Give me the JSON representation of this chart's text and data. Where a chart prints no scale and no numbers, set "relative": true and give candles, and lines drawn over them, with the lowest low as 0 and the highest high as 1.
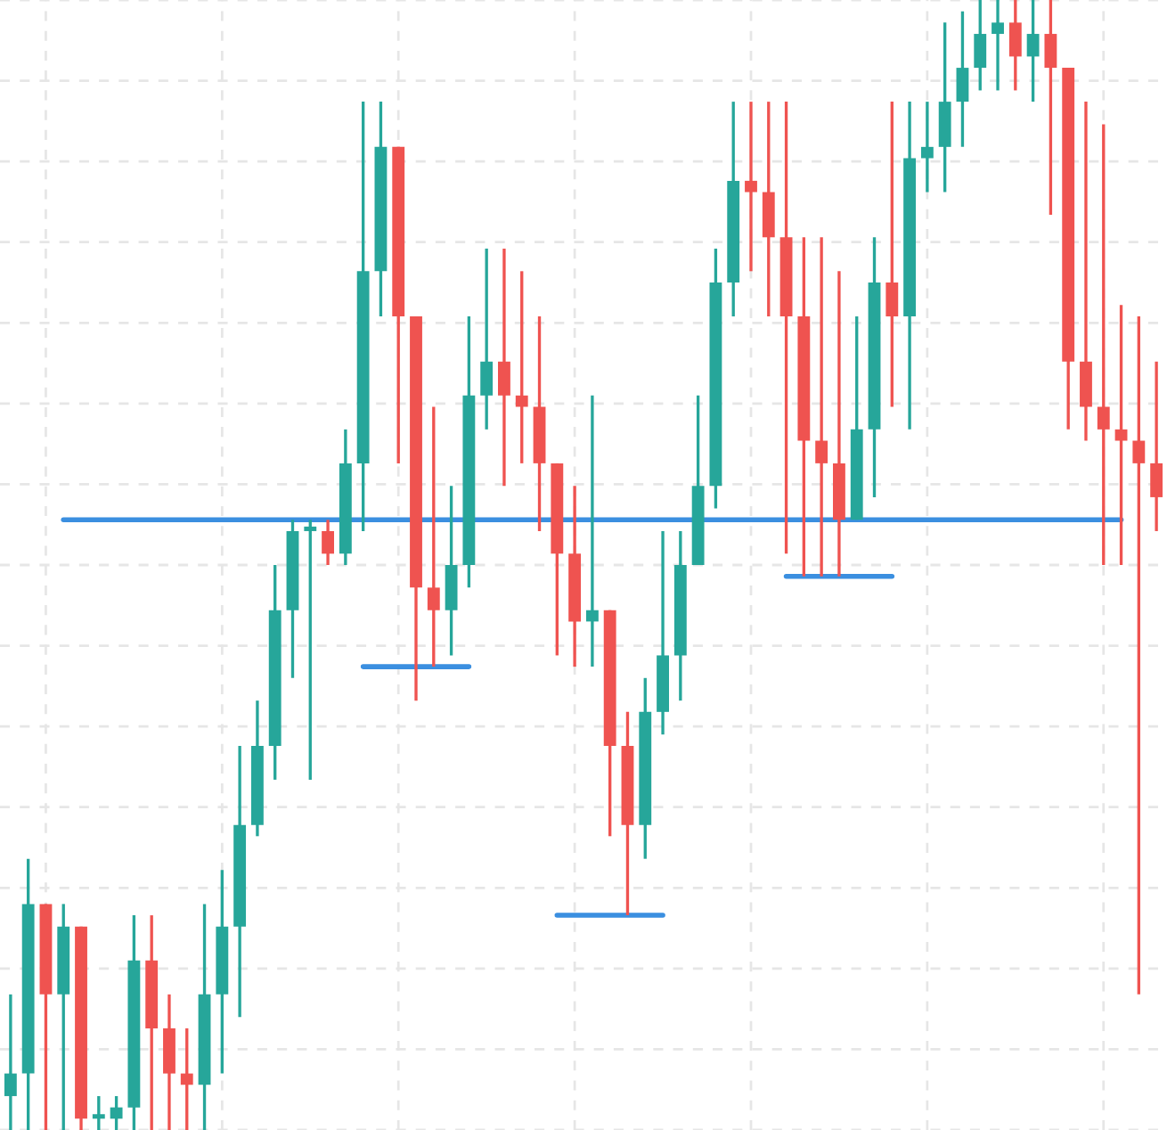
{
  "chart_data": {
    "type": "candlestick",
    "relative": true,
    "grid": true,
    "categories": [
      null,
      null,
      null,
      null,
      null,
      null,
      null,
      null,
      null,
      null,
      null,
      null,
      null,
      null,
      null,
      null,
      null,
      null,
      null,
      null,
      null,
      null,
      null,
      null,
      null,
      null,
      null,
      null,
      null,
      null,
      null,
      null,
      null,
      null,
      null,
      null,
      null,
      null,
      null,
      null,
      null,
      null,
      null,
      null,
      null,
      null,
      null,
      null,
      null,
      null,
      null,
      null,
      null,
      null,
      null,
      null,
      null,
      null,
      null,
      null,
      null,
      null,
      null,
      null,
      null,
      null
    ],
    "ohlc": [
      [
        0.03,
        0.12,
        0,
        0.05
      ],
      [
        0.05,
        0.24,
        0,
        0.2
      ],
      [
        0.2,
        0.2,
        0,
        0.12
      ],
      [
        0.12,
        0.2,
        0,
        0.18
      ],
      [
        0.18,
        0.18,
        0,
        0.01
      ],
      [
        0.01,
        0.03,
        0,
        0.01
      ],
      [
        0.01,
        0.03,
        0,
        0.02
      ],
      [
        0.02,
        0.19,
        0,
        0.15
      ],
      [
        0.15,
        0.19,
        0,
        0.09
      ],
      [
        0.09,
        0.12,
        0,
        0.05
      ],
      [
        0.05,
        0.09,
        0,
        0.04
      ],
      [
        0.04,
        0.2,
        0,
        0.12
      ],
      [
        0.12,
        0.23,
        0.05,
        0.18
      ],
      [
        0.18,
        0.34,
        0.1,
        0.27
      ],
      [
        0.27,
        0.38,
        0.26,
        0.34
      ],
      [
        0.34,
        0.5,
        0.31,
        0.46
      ],
      [
        0.46,
        0.54,
        0.4,
        0.53
      ],
      [
        0.53,
        0.54,
        0.31,
        0.53
      ],
      [
        0.53,
        0.54,
        0.5,
        0.51
      ],
      [
        0.51,
        0.62,
        0.5,
        0.59
      ],
      [
        0.59,
        0.91,
        0.53,
        0.76
      ],
      [
        0.76,
        0.91,
        0.72,
        0.87
      ],
      [
        0.87,
        0.87,
        0.59,
        0.72
      ],
      [
        0.72,
        0.72,
        0.38,
        0.48
      ],
      [
        0.48,
        0.64,
        0.41,
        0.46
      ],
      [
        0.46,
        0.57,
        0.42,
        0.5
      ],
      [
        0.5,
        0.72,
        0.48,
        0.65
      ],
      [
        0.65,
        0.78,
        0.62,
        0.68
      ],
      [
        0.68,
        0.78,
        0.57,
        0.65
      ],
      [
        0.65,
        0.76,
        0.59,
        0.64
      ],
      [
        0.64,
        0.72,
        0.53,
        0.59
      ],
      [
        0.59,
        0.59,
        0.42,
        0.51
      ],
      [
        0.51,
        0.57,
        0.41,
        0.45
      ],
      [
        0.45,
        0.65,
        0.41,
        0.46
      ],
      [
        0.46,
        0.46,
        0.26,
        0.34
      ],
      [
        0.34,
        0.37,
        0.19,
        0.27
      ],
      [
        0.27,
        0.4,
        0.24,
        0.37
      ],
      [
        0.37,
        0.53,
        0.35,
        0.42
      ],
      [
        0.42,
        0.53,
        0.38,
        0.5
      ],
      [
        0.5,
        0.65,
        0.5,
        0.57
      ],
      [
        0.57,
        0.78,
        0.55,
        0.75
      ],
      [
        0.75,
        0.91,
        0.72,
        0.84
      ],
      [
        0.84,
        0.91,
        0.76,
        0.83
      ],
      [
        0.83,
        0.91,
        0.72,
        0.79
      ],
      [
        0.79,
        0.91,
        0.51,
        0.72
      ],
      [
        0.72,
        0.79,
        0.49,
        0.61
      ],
      [
        0.61,
        0.79,
        0.49,
        0.59
      ],
      [
        0.59,
        0.76,
        0.49,
        0.54
      ],
      [
        0.54,
        0.72,
        0.54,
        0.62
      ],
      [
        0.62,
        0.79,
        0.56,
        0.75
      ],
      [
        0.75,
        0.91,
        0.64,
        0.72
      ],
      [
        0.72,
        0.91,
        0.62,
        0.86
      ],
      [
        0.86,
        0.91,
        0.83,
        0.87
      ],
      [
        0.87,
        0.98,
        0.83,
        0.91
      ],
      [
        0.91,
        0.99,
        0.87,
        0.94
      ],
      [
        0.94,
        1,
        0.92,
        0.97
      ],
      [
        0.97,
        1,
        0.92,
        0.98
      ],
      [
        0.98,
        1,
        0.92,
        0.95
      ],
      [
        0.95,
        1,
        0.91,
        0.97
      ],
      [
        0.97,
        1,
        0.81,
        0.94
      ],
      [
        0.94,
        0.94,
        0.62,
        0.68
      ],
      [
        0.68,
        0.91,
        0.61,
        0.64
      ],
      [
        0.64,
        0.89,
        0.5,
        0.62
      ],
      [
        0.62,
        0.73,
        0.5,
        0.61
      ],
      [
        0.61,
        0.72,
        0.12,
        0.59
      ],
      [
        0.59,
        0.68,
        0.53,
        0.56
      ]
    ],
    "colors": [
      "#26a69a",
      "#26a69a",
      "#ef5350",
      "#26a69a",
      "#ef5350",
      "#26a69a",
      "#26a69a",
      "#26a69a",
      "#ef5350",
      "#ef5350",
      "#ef5350",
      "#26a69a",
      "#26a69a",
      "#26a69a",
      "#26a69a",
      "#26a69a",
      "#26a69a",
      "#26a69a",
      "#ef5350",
      "#26a69a",
      "#26a69a",
      "#26a69a",
      "#ef5350",
      "#ef5350",
      "#ef5350",
      "#26a69a",
      "#26a69a",
      "#26a69a",
      "#ef5350",
      "#ef5350",
      "#ef5350",
      "#ef5350",
      "#ef5350",
      "#26a69a",
      "#ef5350",
      "#ef5350",
      "#26a69a",
      "#26a69a",
      "#26a69a",
      "#26a69a",
      "#26a69a",
      "#26a69a",
      "#ef5350",
      "#ef5350",
      "#ef5350",
      "#ef5350",
      "#ef5350",
      "#ef5350",
      "#26a69a",
      "#26a69a",
      "#ef5350",
      "#26a69a",
      "#26a69a",
      "#26a69a",
      "#26a69a",
      "#26a69a",
      "#26a69a",
      "#ef5350",
      "#26a69a",
      "#ef5350",
      "#ef5350",
      "#ef5350",
      "#ef5350",
      "#ef5350",
      "#ef5350",
      "#ef5350"
    ],
    "series": [
      {
        "type": "line",
        "color": "#3b8fe0",
        "values": [
          null,
          null,
          null,
          0.54,
          0.54,
          0.54,
          0.54,
          0.54,
          0.54,
          0.54,
          0.54,
          0.54,
          0.54,
          0.54,
          0.54,
          0.54,
          0.54,
          0.54,
          0.54,
          0.54,
          0.54,
          0.54,
          0.54,
          0.54,
          0.54,
          0.54,
          0.54,
          0.54,
          0.54,
          0.54,
          0.54,
          0.54,
          0.54,
          0.54,
          0.54,
          0.54,
          0.54,
          0.54,
          0.54,
          0.54,
          0.54,
          0.54,
          0.54,
          0.54,
          0.54,
          0.54,
          0.54,
          0.54,
          0.54,
          0.54,
          0.54,
          0.54,
          0.54,
          0.54,
          0.54,
          0.54,
          0.54,
          0.54,
          0.54,
          0.54,
          0.54,
          0.54,
          0.54,
          0.54,
          null,
          null
        ]
      },
      {
        "type": "line",
        "color": "#3b8fe0",
        "values": [
          null,
          null,
          null,
          null,
          null,
          null,
          null,
          null,
          null,
          null,
          null,
          null,
          null,
          null,
          null,
          null,
          null,
          null,
          null,
          null,
          0.41,
          0.41,
          0.41,
          0.41,
          0.41,
          0.41,
          0.41,
          null,
          null,
          null,
          null,
          null,
          null,
          null,
          null,
          null,
          null,
          null,
          null,
          null,
          null,
          null,
          null,
          null,
          null,
          null,
          null,
          null,
          null,
          null,
          null,
          null,
          null,
          null,
          null,
          null,
          null,
          null,
          null,
          null,
          null,
          null,
          null,
          null,
          null,
          null
        ]
      },
      {
        "type": "line",
        "color": "#3b8fe0",
        "values": [
          null,
          null,
          null,
          null,
          null,
          null,
          null,
          null,
          null,
          null,
          null,
          null,
          null,
          null,
          null,
          null,
          null,
          null,
          null,
          null,
          null,
          null,
          null,
          null,
          null,
          null,
          null,
          null,
          null,
          null,
          null,
          0.19,
          0.19,
          0.19,
          0.19,
          0.19,
          0.19,
          0.19,
          null,
          null,
          null,
          null,
          null,
          null,
          null,
          null,
          null,
          null,
          null,
          null,
          null,
          null,
          null,
          null,
          null,
          null,
          null,
          null,
          null,
          null,
          null,
          null,
          null,
          null,
          null,
          null
        ]
      },
      {
        "type": "line",
        "color": "#3b8fe0",
        "values": [
          null,
          null,
          null,
          null,
          null,
          null,
          null,
          null,
          null,
          null,
          null,
          null,
          null,
          null,
          null,
          null,
          null,
          null,
          null,
          null,
          null,
          null,
          null,
          null,
          null,
          null,
          null,
          null,
          null,
          null,
          null,
          null,
          null,
          null,
          null,
          null,
          null,
          null,
          null,
          null,
          null,
          null,
          null,
          null,
          0.49,
          0.49,
          0.49,
          0.49,
          0.49,
          0.49,
          0.49,
          null,
          null,
          null,
          null,
          null,
          null,
          null,
          null,
          null,
          null,
          null,
          null,
          null,
          null,
          null
        ]
      }
    ]
  }
}
